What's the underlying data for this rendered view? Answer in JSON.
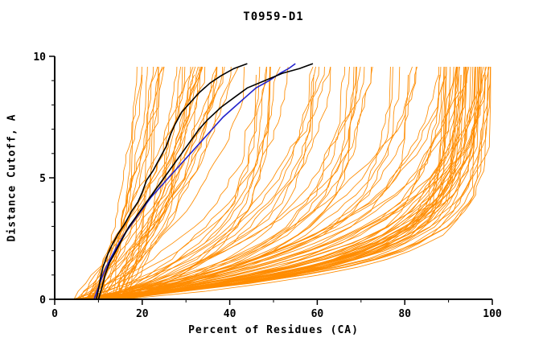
{
  "chart_data": {
    "type": "line",
    "title": "T0959-D1",
    "xlabel": "Percent of Residues (CA)",
    "ylabel": "Distance Cutoff, A",
    "xlim": [
      0,
      100
    ],
    "ylim": [
      0,
      10
    ],
    "x_ticks": [
      0,
      20,
      40,
      60,
      80,
      100
    ],
    "y_ticks": [
      0,
      5,
      10
    ],
    "x_minor_step": 10,
    "y_minor_step": 1,
    "grid": false,
    "legend": "none",
    "colors": {
      "ensemble": "#ff8c00",
      "highlight_black": "#000000",
      "highlight_blue": "#2222cc",
      "axis": "#000000"
    },
    "series": [
      {
        "name": "highlighted-model-black-1",
        "color": "#000000",
        "width": 1.6,
        "points": [
          [
            9.5,
            0
          ],
          [
            10,
            0.4
          ],
          [
            10.5,
            0.9
          ],
          [
            11,
            1.3
          ],
          [
            12,
            1.8
          ],
          [
            13,
            2.2
          ],
          [
            14.5,
            2.7
          ],
          [
            16,
            3.1
          ],
          [
            17.5,
            3.6
          ],
          [
            19,
            4.0
          ],
          [
            20,
            4.4
          ],
          [
            21,
            4.9
          ],
          [
            22.5,
            5.3
          ],
          [
            24,
            5.8
          ],
          [
            25.5,
            6.3
          ],
          [
            26.5,
            6.8
          ],
          [
            27.5,
            7.2
          ],
          [
            29,
            7.7
          ],
          [
            31,
            8.1
          ],
          [
            33,
            8.5
          ],
          [
            35.5,
            8.9
          ],
          [
            38,
            9.2
          ],
          [
            41,
            9.5
          ],
          [
            44,
            9.7
          ]
        ]
      },
      {
        "name": "highlighted-model-black-2",
        "color": "#000000",
        "width": 1.6,
        "points": [
          [
            10,
            0
          ],
          [
            10.8,
            0.5
          ],
          [
            11.5,
            1.0
          ],
          [
            12.5,
            1.5
          ],
          [
            14,
            2.0
          ],
          [
            15.5,
            2.5
          ],
          [
            17,
            3.0
          ],
          [
            19,
            3.5
          ],
          [
            21,
            4.0
          ],
          [
            23,
            4.5
          ],
          [
            25,
            5.0
          ],
          [
            27,
            5.5
          ],
          [
            29,
            6.0
          ],
          [
            31,
            6.5
          ],
          [
            33,
            7.0
          ],
          [
            35,
            7.4
          ],
          [
            38,
            7.9
          ],
          [
            41,
            8.3
          ],
          [
            44,
            8.7
          ],
          [
            48,
            9.0
          ],
          [
            52,
            9.3
          ],
          [
            56,
            9.5
          ],
          [
            59,
            9.7
          ]
        ]
      },
      {
        "name": "highlighted-model-blue-1",
        "color": "#2222cc",
        "width": 1.6,
        "points": [
          [
            9,
            0
          ],
          [
            10,
            0.5
          ],
          [
            11,
            1.0
          ],
          [
            12.5,
            1.6
          ],
          [
            14,
            2.1
          ],
          [
            16,
            2.7
          ],
          [
            18,
            3.2
          ],
          [
            20,
            3.7
          ],
          [
            22,
            4.2
          ],
          [
            24.5,
            4.7
          ],
          [
            27,
            5.2
          ],
          [
            29.5,
            5.7
          ],
          [
            32,
            6.2
          ],
          [
            34,
            6.6
          ],
          [
            36,
            7.0
          ],
          [
            38.5,
            7.5
          ],
          [
            41,
            7.9
          ],
          [
            43.5,
            8.3
          ],
          [
            46,
            8.7
          ],
          [
            49,
            9.0
          ],
          [
            51.5,
            9.3
          ],
          [
            53.5,
            9.5
          ],
          [
            55,
            9.7
          ]
        ]
      }
    ],
    "ensemble": {
      "name": "server-model-curves",
      "color": "#ff8c00",
      "count": 115,
      "seed": 20959,
      "cutoff_max": 9.7,
      "x_start_range": [
        4,
        16
      ],
      "groups": [
        {
          "name": "left-bundle",
          "weight": 0.3,
          "x_end_range": [
            18,
            40
          ],
          "k_range": [
            0.05,
            0.25
          ]
        },
        {
          "name": "mid-fan",
          "weight": 0.28,
          "x_end_range": [
            42,
            86
          ],
          "k_range": [
            0.2,
            0.55
          ]
        },
        {
          "name": "right-bundle",
          "weight": 0.42,
          "x_end_range": [
            88,
            99
          ],
          "k_range": [
            0.35,
            0.85
          ]
        }
      ]
    }
  }
}
